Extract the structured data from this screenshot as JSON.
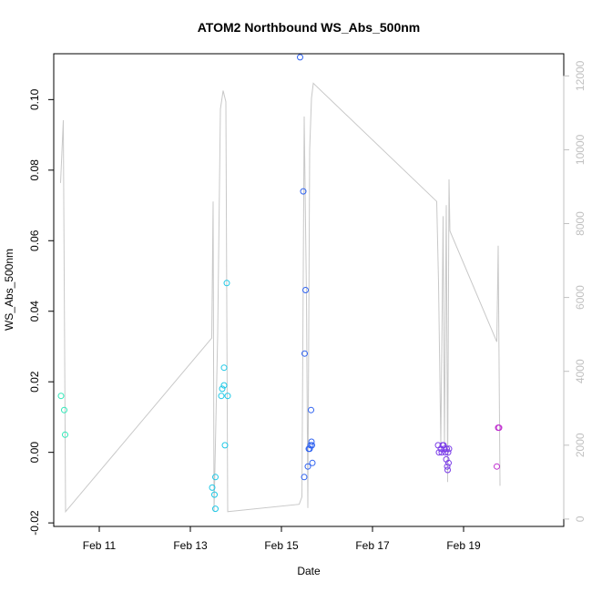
{
  "chart_data": {
    "type": "scatter",
    "title": "ATOM2 Northbound WS_Abs_500nm",
    "xlabel": "Date",
    "ylabel": "WS_Abs_500nm",
    "x_unit": "days (Feb 2 = 0)",
    "xlim": [
      10.0,
      21.2
    ],
    "ylim": [
      -0.021,
      0.113
    ],
    "y2lim": [
      -200,
      12600
    ],
    "x_ticks": [
      {
        "x": 11,
        "label": "Feb 11"
      },
      {
        "x": 13,
        "label": "Feb 13"
      },
      {
        "x": 15,
        "label": "Feb 15"
      },
      {
        "x": 17,
        "label": "Feb 17"
      },
      {
        "x": 19,
        "label": "Feb 19"
      }
    ],
    "y_ticks": [
      {
        "v": -0.02,
        "label": "-0.02"
      },
      {
        "v": 0.0,
        "label": "0.00"
      },
      {
        "v": 0.02,
        "label": "0.02"
      },
      {
        "v": 0.04,
        "label": "0.04"
      },
      {
        "v": 0.06,
        "label": "0.06"
      },
      {
        "v": 0.08,
        "label": "0.08"
      },
      {
        "v": 0.1,
        "label": "0.10"
      }
    ],
    "y2_ticks": [
      {
        "v": 0,
        "label": "0"
      },
      {
        "v": 2000,
        "label": "2000"
      },
      {
        "v": 4000,
        "label": "4000"
      },
      {
        "v": 6000,
        "label": "6000"
      },
      {
        "v": 8000,
        "label": "8000"
      },
      {
        "v": 10000,
        "label": "10000"
      },
      {
        "v": 12000,
        "label": "12000"
      }
    ],
    "points": [
      {
        "x": 10.16,
        "y": 0.016,
        "color": "#2ee8b8"
      },
      {
        "x": 10.23,
        "y": 0.012,
        "color": "#2ee8b8"
      },
      {
        "x": 10.25,
        "y": 0.005,
        "color": "#2ee8b8"
      },
      {
        "x": 13.48,
        "y": -0.01,
        "color": "#1ec8e6"
      },
      {
        "x": 13.53,
        "y": -0.012,
        "color": "#1ec8e6"
      },
      {
        "x": 13.55,
        "y": -0.016,
        "color": "#1ec8e6"
      },
      {
        "x": 13.55,
        "y": -0.007,
        "color": "#1ec8e6"
      },
      {
        "x": 13.68,
        "y": 0.016,
        "color": "#1ec8e6"
      },
      {
        "x": 13.7,
        "y": 0.018,
        "color": "#1ec8e6"
      },
      {
        "x": 13.74,
        "y": 0.024,
        "color": "#1ec8e6"
      },
      {
        "x": 13.74,
        "y": 0.019,
        "color": "#1ec8e6"
      },
      {
        "x": 13.76,
        "y": 0.002,
        "color": "#1ec8e6"
      },
      {
        "x": 13.8,
        "y": 0.048,
        "color": "#1ec8e6"
      },
      {
        "x": 13.82,
        "y": 0.016,
        "color": "#1ec8e6"
      },
      {
        "x": 15.41,
        "y": 0.112,
        "color": "#2f62f0"
      },
      {
        "x": 15.48,
        "y": 0.074,
        "color": "#2f62f0"
      },
      {
        "x": 15.51,
        "y": 0.028,
        "color": "#2f62f0"
      },
      {
        "x": 15.53,
        "y": 0.046,
        "color": "#2f62f0"
      },
      {
        "x": 15.5,
        "y": -0.007,
        "color": "#2f62f0"
      },
      {
        "x": 15.58,
        "y": -0.004,
        "color": "#2f62f0"
      },
      {
        "x": 15.6,
        "y": 0.001,
        "color": "#2f62f0"
      },
      {
        "x": 15.62,
        "y": 0.001,
        "color": "#2f62f0"
      },
      {
        "x": 15.64,
        "y": 0.002,
        "color": "#2f62f0"
      },
      {
        "x": 15.66,
        "y": 0.003,
        "color": "#2f62f0"
      },
      {
        "x": 15.67,
        "y": 0.002,
        "color": "#2f62f0"
      },
      {
        "x": 15.65,
        "y": 0.012,
        "color": "#2f62f0"
      },
      {
        "x": 15.68,
        "y": -0.003,
        "color": "#2f62f0"
      },
      {
        "x": 18.44,
        "y": 0.002,
        "color": "#7a3ce8"
      },
      {
        "x": 18.46,
        "y": 0.0,
        "color": "#7a3ce8"
      },
      {
        "x": 18.5,
        "y": 0.001,
        "color": "#7a3ce8"
      },
      {
        "x": 18.52,
        "y": 0.0,
        "color": "#7a3ce8"
      },
      {
        "x": 18.54,
        "y": 0.002,
        "color": "#7a3ce8"
      },
      {
        "x": 18.56,
        "y": 0.002,
        "color": "#7a3ce8"
      },
      {
        "x": 18.58,
        "y": 0.001,
        "color": "#7a3ce8"
      },
      {
        "x": 18.6,
        "y": 0.0,
        "color": "#7a3ce8"
      },
      {
        "x": 18.62,
        "y": -0.002,
        "color": "#7a3ce8"
      },
      {
        "x": 18.63,
        "y": 0.001,
        "color": "#7a3ce8"
      },
      {
        "x": 18.64,
        "y": -0.004,
        "color": "#7a3ce8"
      },
      {
        "x": 18.65,
        "y": -0.005,
        "color": "#7a3ce8"
      },
      {
        "x": 18.66,
        "y": 0.0,
        "color": "#7a3ce8"
      },
      {
        "x": 18.67,
        "y": -0.003,
        "color": "#7a3ce8"
      },
      {
        "x": 18.68,
        "y": 0.001,
        "color": "#7a3ce8"
      },
      {
        "x": 19.73,
        "y": -0.004,
        "color": "#c030d0"
      },
      {
        "x": 19.76,
        "y": 0.007,
        "color": "#c030d0"
      },
      {
        "x": 19.78,
        "y": 0.007,
        "color": "#c030d0"
      }
    ],
    "line_series": {
      "name": "secondary axis trace",
      "color": "#c8c8c8",
      "points": [
        [
          10.15,
          9100
        ],
        [
          10.21,
          10800
        ],
        [
          10.26,
          200
        ],
        [
          13.47,
          4900
        ],
        [
          13.5,
          8600
        ],
        [
          13.52,
          200
        ],
        [
          13.6,
          5000
        ],
        [
          13.66,
          11100
        ],
        [
          13.72,
          11600
        ],
        [
          13.78,
          11300
        ],
        [
          13.82,
          200
        ],
        [
          15.39,
          400
        ],
        [
          15.45,
          600
        ],
        [
          15.5,
          10900
        ],
        [
          15.55,
          6000
        ],
        [
          15.58,
          300
        ],
        [
          15.62,
          10000
        ],
        [
          15.66,
          11400
        ],
        [
          15.7,
          11800
        ],
        [
          18.41,
          8600
        ],
        [
          18.45,
          6400
        ],
        [
          18.5,
          2000
        ],
        [
          18.55,
          8200
        ],
        [
          18.58,
          2000
        ],
        [
          18.62,
          8500
        ],
        [
          18.65,
          1000
        ],
        [
          18.68,
          9200
        ],
        [
          18.7,
          7800
        ],
        [
          19.73,
          4800
        ],
        [
          19.76,
          7400
        ],
        [
          19.8,
          900
        ]
      ]
    }
  }
}
